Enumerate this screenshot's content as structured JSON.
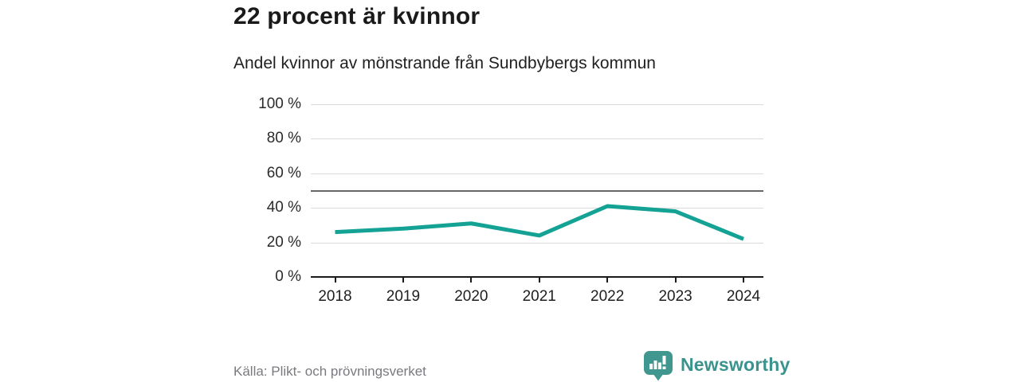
{
  "chart": {
    "title": "22 procent är kvinnor",
    "subtitle": "Andel kvinnor av mönstrande från Sundbybergs kommun"
  },
  "chart_data": {
    "type": "line",
    "title": "22 procent är kvinnor",
    "subtitle": "Andel kvinnor av mönstrande från Sundbybergs kommun",
    "categories": [
      "2018",
      "2019",
      "2020",
      "2021",
      "2022",
      "2023",
      "2024"
    ],
    "series": [
      {
        "name": "Andel kvinnor av mönstrande, Sundbybergs kommun",
        "values": [
          26,
          28,
          31,
          24,
          41,
          38,
          22
        ]
      }
    ],
    "unit": "%",
    "xlabel": "",
    "ylabel": "",
    "ylim": [
      0,
      100
    ],
    "yticks": [
      0,
      20,
      40,
      60,
      80,
      100
    ],
    "ytick_labels": [
      "0 %",
      "20 %",
      "40 %",
      "60 %",
      "80 %",
      "100 %"
    ],
    "reference_line": 50,
    "grid": true,
    "legend_position": "none"
  },
  "colors": {
    "line": "#14a295",
    "gridline": "#dadada",
    "reference_line": "#666666",
    "axis": "#1a1a1a",
    "text_dark": "#1f1f1f",
    "source_text": "#7b7980",
    "brand_teal": "#3a938d"
  },
  "footer": {
    "source": "Källa: Plikt- och prövningsverket",
    "brand": "Newsworthy"
  },
  "icons": {
    "brand_logo": "newsworthy-speech-bubble-bar-chart-icon"
  }
}
